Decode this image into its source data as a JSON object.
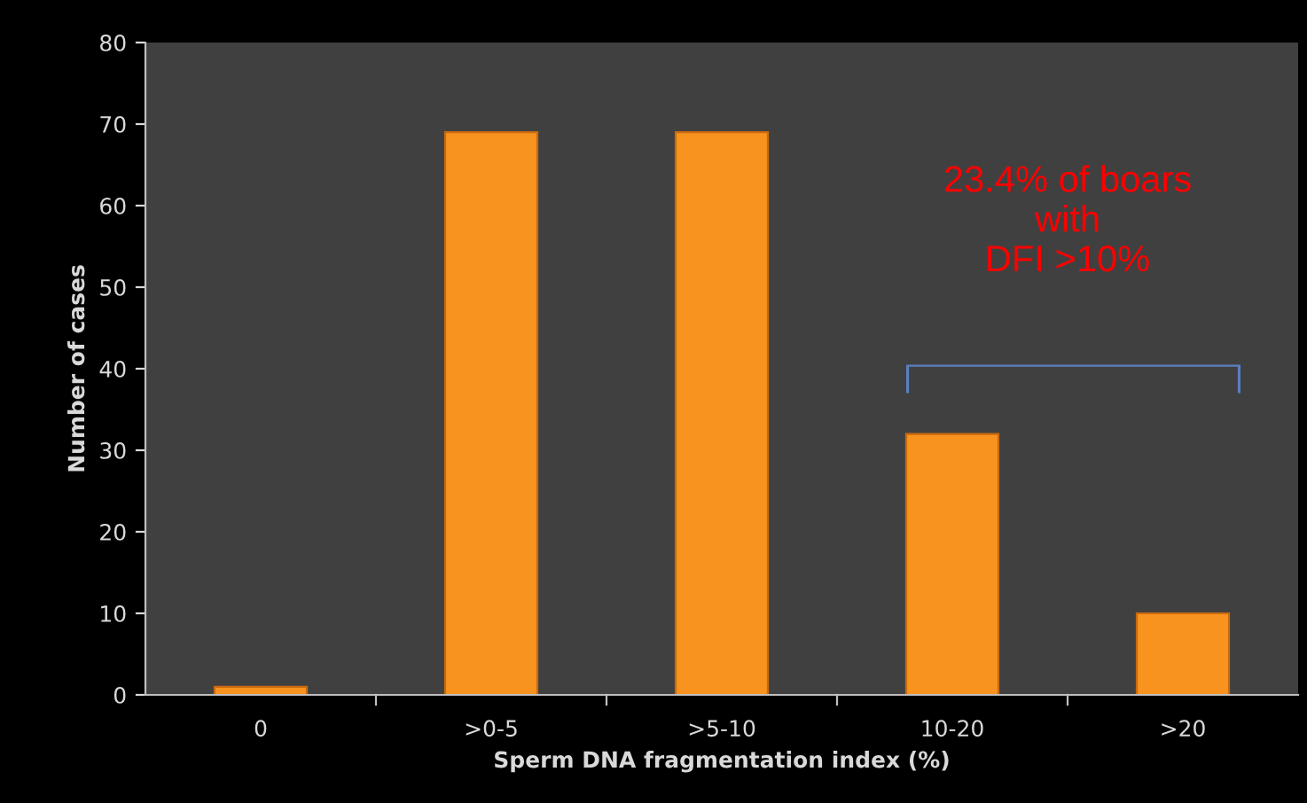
{
  "chart_data": {
    "type": "bar",
    "xlabel": "Sperm DNA fragmentation index (%)",
    "ylabel": "Number of cases",
    "categories": [
      "0",
      ">0-5",
      ">5-10",
      "10-20",
      ">20"
    ],
    "values": [
      1,
      69,
      69,
      32,
      10
    ],
    "color": "#f7931e",
    "ylim": [
      0,
      80
    ],
    "yticks": [
      0,
      10,
      20,
      30,
      40,
      50,
      60,
      70,
      80
    ],
    "grid": false,
    "annotations": [
      "23.4% of boars\nwith\nDFI >10%"
    ]
  }
}
